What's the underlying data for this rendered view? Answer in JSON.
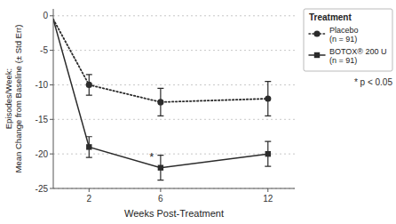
{
  "chart_data": {
    "type": "line",
    "xlabel": "Weeks Post-Treatment",
    "ylabel": "Episodes/Week:\nMean Change from Baseline (± Std Err)",
    "legend_title": "Treatment",
    "x": [
      0,
      2,
      6,
      12
    ],
    "series": [
      {
        "name": "Placebo\n(n = 91)",
        "color": "#2b2b2b",
        "line_style": "dotted",
        "marker": "circle",
        "values": [
          -0.5,
          -10,
          -12.5,
          -12
        ],
        "errors": [
          null,
          1.5,
          2.0,
          2.5
        ]
      },
      {
        "name": "BOTOX® 200 U\n(n = 91)",
        "color": "#2b2b2b",
        "line_style": "solid",
        "marker": "square",
        "values": [
          -0.5,
          -19,
          -22,
          -20
        ],
        "errors": [
          null,
          1.5,
          1.8,
          1.8
        ]
      }
    ],
    "annotations": [
      {
        "text": "*",
        "x": 5.5,
        "y": -21
      },
      {
        "text": "* p < 0.05"
      }
    ],
    "xlim": [
      0,
      13.5
    ],
    "xticks": [
      2,
      6,
      12
    ],
    "ylim": [
      -25,
      1
    ],
    "yticks": [
      0,
      -5,
      -10,
      -15,
      -20,
      -25
    ],
    "grid": true,
    "legend": "upper right"
  }
}
